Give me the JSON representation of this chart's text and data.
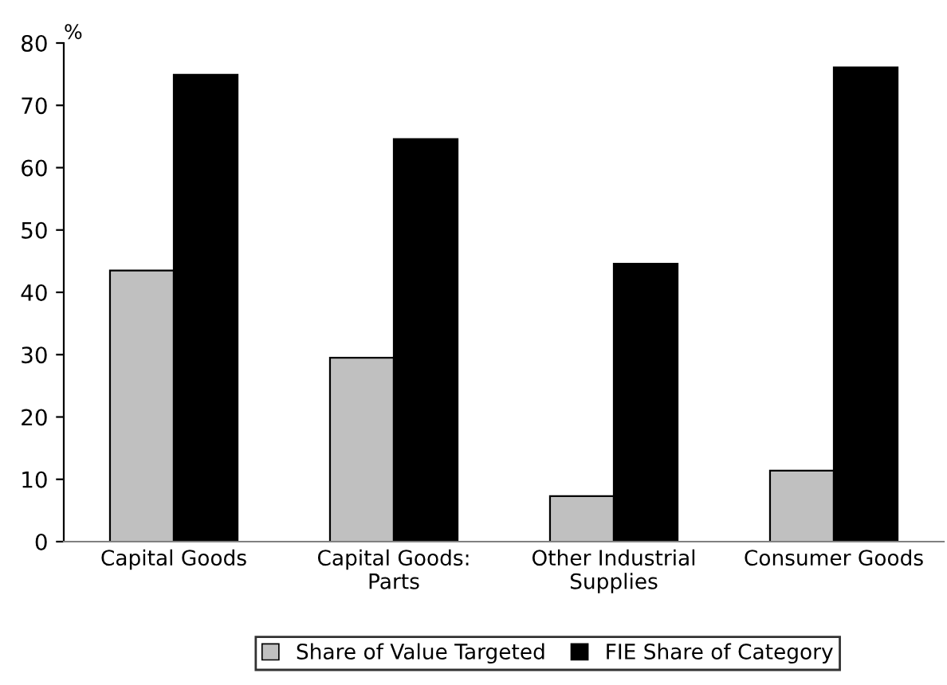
{
  "chart_data": {
    "type": "bar",
    "ylabel": "%",
    "categories": [
      "Capital Goods",
      "Capital Goods:\nParts",
      "Other Industrial\nSupplies",
      "Consumer Goods"
    ],
    "series": [
      {
        "name": "Share of Value Targeted",
        "color": "#c0c0c0",
        "values": [
          43.5,
          29.5,
          7.3,
          11.4
        ]
      },
      {
        "name": "FIE Share of Category",
        "color": "#000000",
        "values": [
          74.9,
          64.6,
          44.6,
          76.1
        ]
      }
    ],
    "ylim": [
      0,
      80
    ],
    "yticks": [
      0,
      10,
      20,
      30,
      40,
      50,
      60,
      70,
      80
    ],
    "grid": false,
    "legend": "bottom"
  }
}
